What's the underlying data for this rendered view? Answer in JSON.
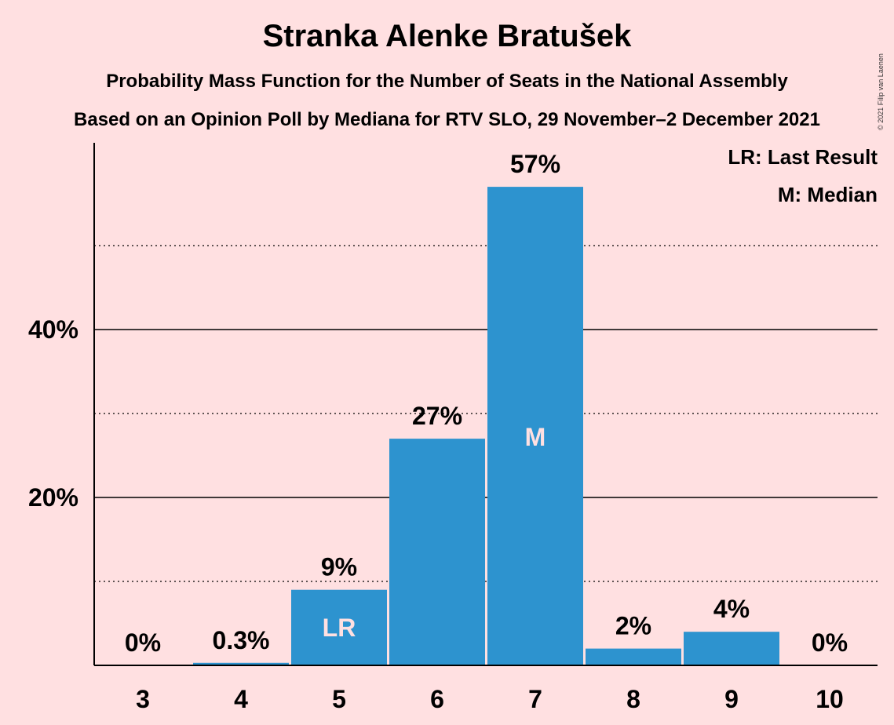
{
  "chart_data": {
    "type": "bar",
    "title": "Stranka Alenke Bratušek",
    "subtitle": "Probability Mass Function for the Number of Seats in the National Assembly",
    "subtitle2": "Based on an Opinion Poll by Mediana for RTV SLO, 29 November–2 December 2021",
    "copyright": "© 2021 Filip van Laenen",
    "categories": [
      "3",
      "4",
      "5",
      "6",
      "7",
      "8",
      "9",
      "10"
    ],
    "values": [
      0,
      0.3,
      9,
      27,
      57,
      2,
      4,
      0
    ],
    "value_labels": [
      "0%",
      "0.3%",
      "9%",
      "27%",
      "57%",
      "2%",
      "4%",
      "0%"
    ],
    "bar_markers": {
      "5": "LR",
      "7": "M"
    },
    "ylim": [
      0,
      62
    ],
    "yticks": [
      {
        "value": 20,
        "label": "20%"
      },
      {
        "value": 40,
        "label": "40%"
      }
    ],
    "minor_gridlines": [
      10,
      30,
      50
    ],
    "legend": [
      "LR: Last Result",
      "M: Median"
    ],
    "legend_position": "top-right",
    "bar_color": "#2D93CF",
    "background_color": "#FFE0E1"
  }
}
